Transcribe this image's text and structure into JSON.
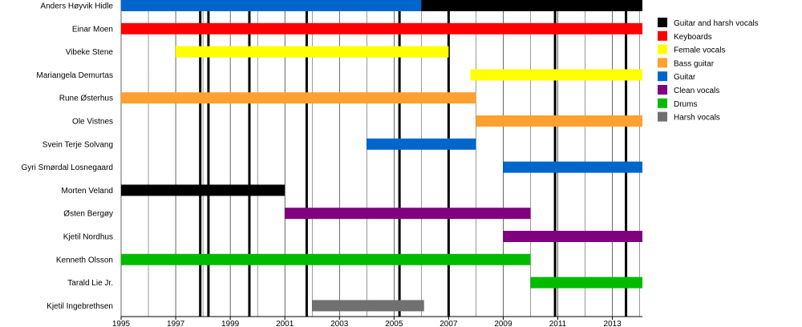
{
  "chart_data": {
    "type": "bar",
    "orientation": "horizontal-timeline",
    "title": "",
    "xlabel": "",
    "ylabel": "",
    "xlim": [
      1995,
      2014.1
    ],
    "x_ticks": [
      "1995",
      "1997",
      "1999",
      "2001",
      "2003",
      "2005",
      "2007",
      "2009",
      "2011",
      "2013"
    ],
    "grid": true,
    "legend_placement": "top-right",
    "roles": [
      {
        "key": "guitar_harsh",
        "name": "Guitar and harsh vocals",
        "color": "#000000"
      },
      {
        "key": "keyboards",
        "name": "Keyboards",
        "color": "#ff0000"
      },
      {
        "key": "female",
        "name": "Female vocals",
        "color": "#ffff00"
      },
      {
        "key": "bass",
        "name": "Bass guitar",
        "color": "#ffa030"
      },
      {
        "key": "guitar",
        "name": " Guitar",
        "color": "#0066cc"
      },
      {
        "key": "clean",
        "name": "Clean vocals",
        "color": "#800080"
      },
      {
        "key": "drums",
        "name": "Drums",
        "color": "#00bb00"
      },
      {
        "key": "harsh",
        "name": "Harsh vocals",
        "color": "#707070"
      }
    ],
    "members": [
      {
        "name": "Anders Høyvik Hidle",
        "periods": [
          {
            "role": "guitar",
            "start": 1995.0,
            "end": 2006.0
          },
          {
            "role": "guitar_harsh",
            "start": 2006.0,
            "end": 2014.1
          }
        ]
      },
      {
        "name": "Einar Moen",
        "periods": [
          {
            "role": "keyboards",
            "start": 1995.0,
            "end": 2014.1
          }
        ]
      },
      {
        "name": "Vibeke Stene",
        "periods": [
          {
            "role": "female",
            "start": 1997.0,
            "end": 2007.0
          }
        ]
      },
      {
        "name": "Mariangela Demurtas",
        "periods": [
          {
            "role": "female",
            "start": 2007.8,
            "end": 2014.1
          }
        ]
      },
      {
        "name": "Rune Østerhus",
        "periods": [
          {
            "role": "bass",
            "start": 1995.0,
            "end": 2008.0
          }
        ]
      },
      {
        "name": "Ole Vistnes",
        "periods": [
          {
            "role": "bass",
            "start": 2008.0,
            "end": 2014.1
          }
        ]
      },
      {
        "name": "Svein Terje Solvang",
        "periods": [
          {
            "role": "guitar",
            "start": 2004.0,
            "end": 2008.0
          }
        ]
      },
      {
        "name": "Gyri Smørdal Losnegaard",
        "periods": [
          {
            "role": "guitar",
            "start": 2009.0,
            "end": 2014.1
          }
        ]
      },
      {
        "name": "Morten Veland",
        "periods": [
          {
            "role": "guitar_harsh",
            "start": 1995.0,
            "end": 2001.0
          }
        ]
      },
      {
        "name": "Østen Bergøy",
        "periods": [
          {
            "role": "clean",
            "start": 2001.0,
            "end": 2010.0
          }
        ]
      },
      {
        "name": "Kjetil Nordhus",
        "periods": [
          {
            "role": "clean",
            "start": 2009.0,
            "end": 2014.1
          }
        ]
      },
      {
        "name": "Kenneth Olsson",
        "periods": [
          {
            "role": "drums",
            "start": 1995.0,
            "end": 2010.0
          }
        ]
      },
      {
        "name": "Tarald Lie Jr.",
        "periods": [
          {
            "role": "drums",
            "start": 2010.0,
            "end": 2014.1
          }
        ]
      },
      {
        "name": "Kjetil Ingebrethsen",
        "periods": [
          {
            "role": "harsh",
            "start": 2002.0,
            "end": 2006.1
          }
        ]
      }
    ],
    "release_markers": [
      1997.9,
      1998.2,
      1999.7,
      2001.8,
      2005.2,
      2007.0,
      2010.9,
      2013.5
    ]
  }
}
